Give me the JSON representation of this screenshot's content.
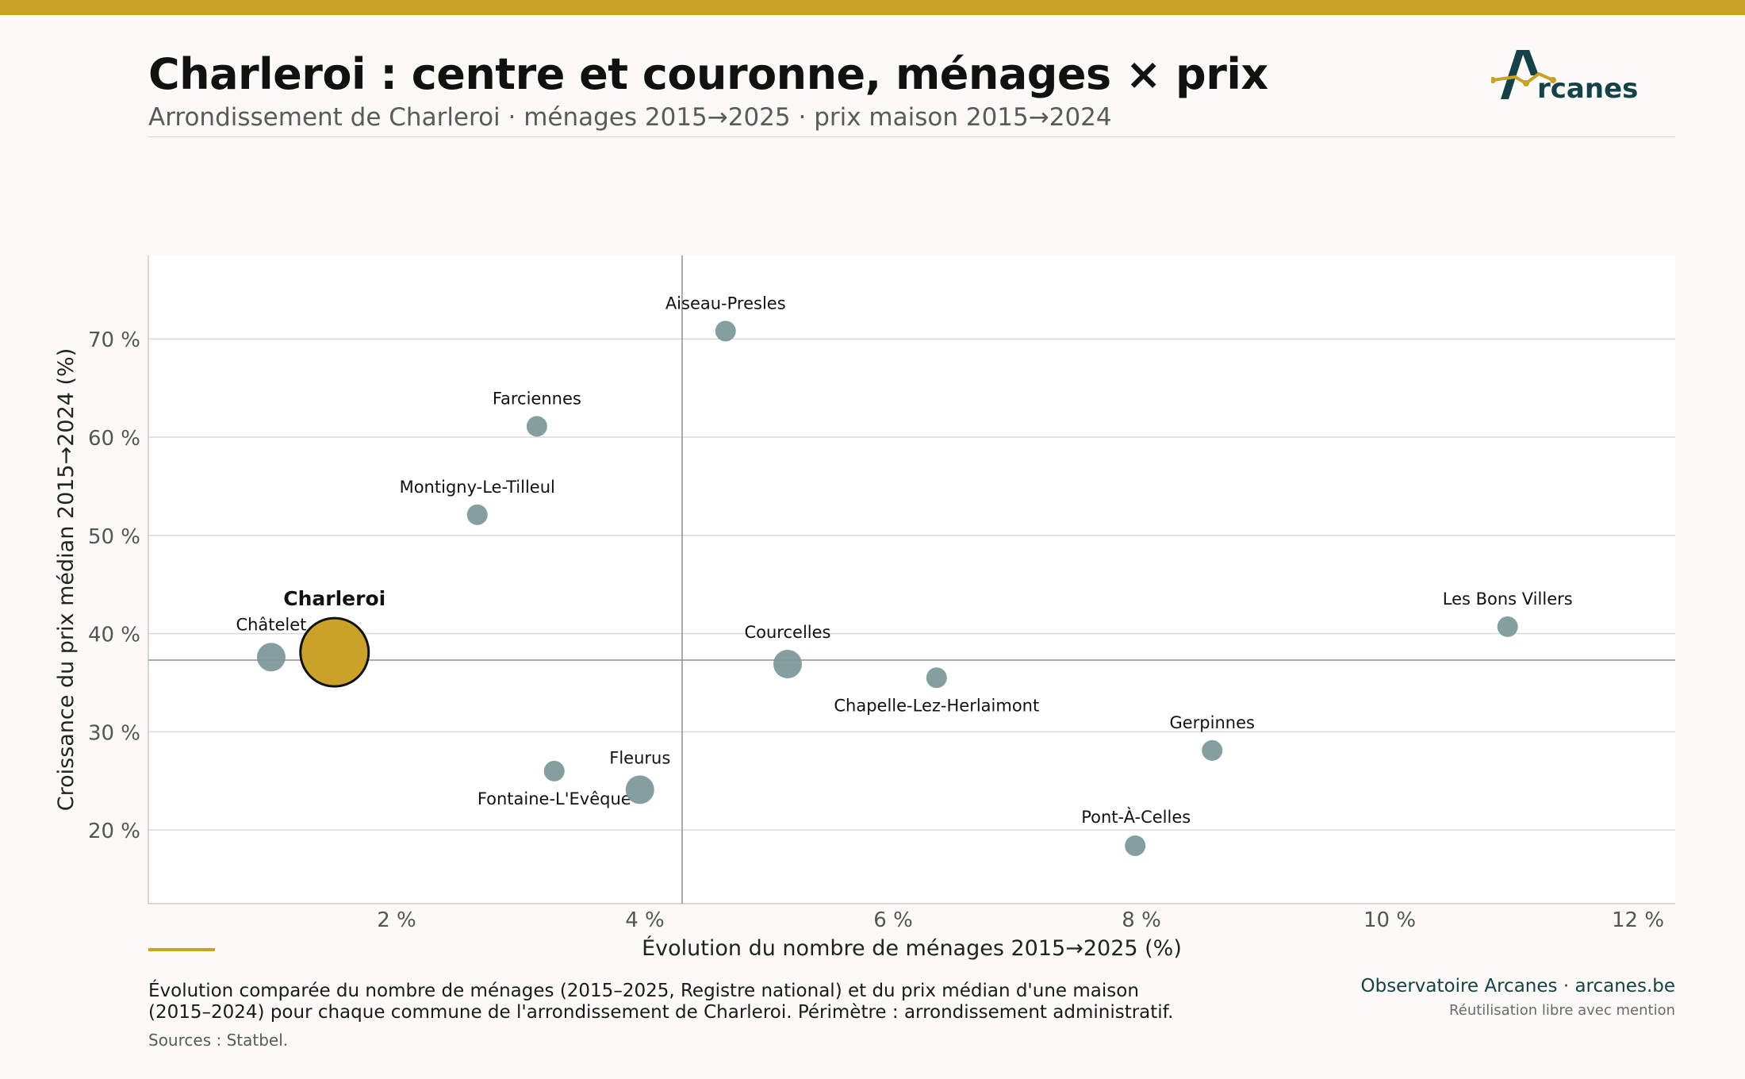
{
  "header": {
    "title": "Charleroi : centre et couronne, ménages × prix",
    "subtitle": "Arrondissement de Charleroi · ménages 2015→2025 · prix maison 2015→2024",
    "logo_text": "rcanes",
    "logo_icon": "arcanes-logo-icon"
  },
  "colors": {
    "accent": "#c9a227",
    "bubble": "#7e9a9c",
    "highlight": "#c9a227",
    "grid": "#dcdad0",
    "brand": "#154248"
  },
  "chart_data": {
    "type": "scatter",
    "xlabel": "Évolution du nombre de ménages 2015→2025 (%)",
    "ylabel": "Croissance du prix médian 2015→2024 (%)",
    "xlim": [
      0,
      12.3
    ],
    "ylim": [
      12.5,
      78.5
    ],
    "xticks": [
      2,
      4,
      6,
      8,
      10,
      12
    ],
    "xtick_labels": [
      "2 %",
      "4 %",
      "6 %",
      "8 %",
      "10 %",
      "12 %"
    ],
    "yticks": [
      20,
      30,
      40,
      50,
      60,
      70
    ],
    "ytick_labels": [
      "20 %",
      "30 %",
      "40 %",
      "50 %",
      "60 %",
      "70 %"
    ],
    "grid": "horizontal",
    "reference_lines": {
      "x": 4.3,
      "y": 37.3
    },
    "points": [
      {
        "label": "Aiseau-Presles",
        "x": 4.65,
        "y": 70.8,
        "size": "small"
      },
      {
        "label": "Farciennes",
        "x": 3.13,
        "y": 61.1,
        "size": "small"
      },
      {
        "label": "Montigny-Le-Tilleul",
        "x": 2.65,
        "y": 52.1,
        "size": "small"
      },
      {
        "label": "Charleroi",
        "x": 1.5,
        "y": 38.1,
        "size": "large",
        "highlight": true
      },
      {
        "label": "Châtelet",
        "x": 0.99,
        "y": 37.6,
        "size": "medium"
      },
      {
        "label": "Courcelles",
        "x": 5.15,
        "y": 36.9,
        "size": "medium"
      },
      {
        "label": "Chapelle-Lez-Herlaimont",
        "x": 6.35,
        "y": 35.5,
        "size": "small"
      },
      {
        "label": "Les Bons Villers",
        "x": 10.95,
        "y": 40.7,
        "size": "small"
      },
      {
        "label": "Gerpinnes",
        "x": 8.57,
        "y": 28.1,
        "size": "small"
      },
      {
        "label": "Fontaine-L'Evêque",
        "x": 3.27,
        "y": 26.0,
        "size": "small"
      },
      {
        "label": "Fleurus",
        "x": 3.96,
        "y": 24.1,
        "size": "medium"
      },
      {
        "label": "Pont-À-Celles",
        "x": 7.95,
        "y": 18.4,
        "size": "small"
      }
    ]
  },
  "footer": {
    "description_line1": "Évolution comparée du nombre de ménages (2015–2025, Registre national) et du prix médian d'une maison",
    "description_line2": "(2015–2024) pour chaque commune de l'arrondissement de Charleroi. Périmètre : arrondissement administratif.",
    "sources": "Sources : Statbel.",
    "brand": "Observatoire Arcanes · arcanes.be",
    "reuse": "Réutilisation libre avec mention"
  }
}
